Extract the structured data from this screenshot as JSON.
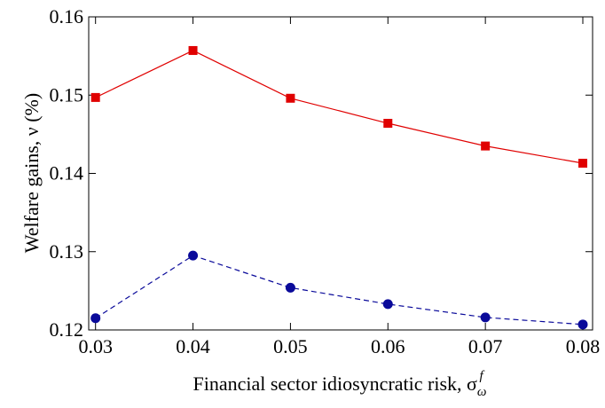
{
  "chart_data": {
    "type": "line",
    "xlabel": "Financial sector idiosyncratic risk, σ",
    "xlabel_sub": "ω",
    "xlabel_sup": "f",
    "ylabel": "Welfare gains, ν (%)",
    "x": [
      0.03,
      0.04,
      0.05,
      0.06,
      0.07,
      0.08
    ],
    "series": [
      {
        "color": "#e00000",
        "marker": "square",
        "dashed": false,
        "values": [
          0.1497,
          0.1557,
          0.1496,
          0.1464,
          0.1435,
          0.1413
        ]
      },
      {
        "color": "#0a0a9a",
        "marker": "circle",
        "dashed": true,
        "values": [
          0.1215,
          0.1295,
          0.1254,
          0.1233,
          0.1216,
          0.1207
        ]
      }
    ],
    "xlim": [
      0.0293,
      0.081
    ],
    "xticks": [
      0.03,
      0.04,
      0.05,
      0.06,
      0.07,
      0.08
    ],
    "ylim": [
      0.12,
      0.16
    ],
    "yticks": [
      0.12,
      0.13,
      0.14,
      0.15,
      0.16
    ]
  }
}
